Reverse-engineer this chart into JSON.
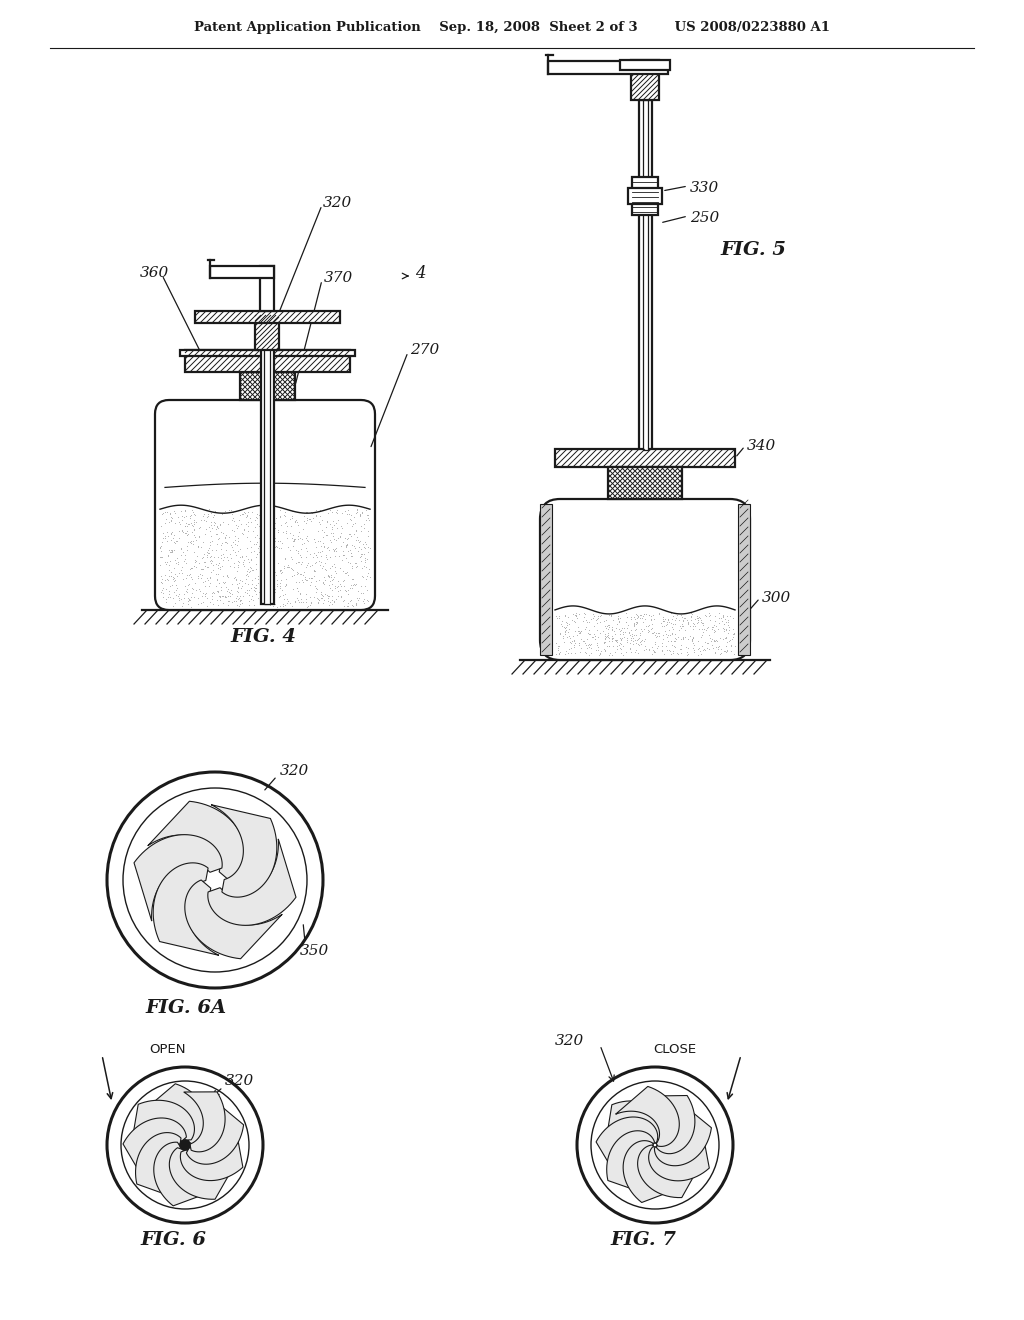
{
  "bg": "#ffffff",
  "lc": "#1a1a1a",
  "header": "Patent Application Publication    Sep. 18, 2008  Sheet 2 of 3        US 2008/0223880 A1",
  "fig4_label": "FIG. 4",
  "fig5_label": "FIG. 5",
  "fig6a_label": "FIG. 6A",
  "fig6_label": "FIG. 6",
  "fig7_label": "FIG. 7",
  "lbl_320a": "320",
  "lbl_360": "360",
  "lbl_370": "370",
  "lbl_270": "270",
  "lbl_4": "4",
  "lbl_330": "330",
  "lbl_250": "250",
  "lbl_340": "340",
  "lbl_300": "300",
  "lbl_320b": "320",
  "lbl_350": "350",
  "lbl_open": "OPEN",
  "lbl_close": "CLOSE",
  "lbl_320c": "320",
  "lbl_320d": "320"
}
